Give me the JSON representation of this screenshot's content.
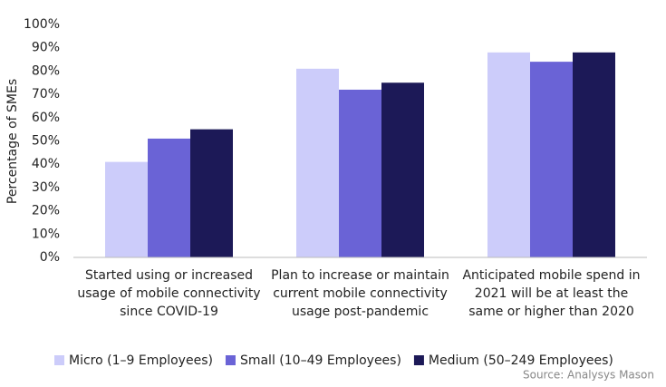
{
  "chart_data": {
    "type": "bar",
    "y_label": "Percentage of SMEs",
    "categories": [
      "Started using or increased usage of mobile connectivity since COVID-19",
      "Plan to increase or maintain current mobile connectivity usage post-pandemic",
      "Anticipated mobile spend in 2021 will be at least the same or higher than 2020"
    ],
    "series": [
      {
        "name": "Micro (1–9 Employees)",
        "color": "#ccccfa",
        "values": [
          41,
          81,
          88
        ]
      },
      {
        "name": "Small (10–49 Employees)",
        "color": "#6a63d6",
        "values": [
          51,
          72,
          84
        ]
      },
      {
        "name": "Medium (50–249 Employees)",
        "color": "#1c1957",
        "values": [
          55,
          75,
          88
        ]
      }
    ],
    "ylim": [
      0,
      100
    ],
    "yticks": [
      {
        "value": 0,
        "label": "0%"
      },
      {
        "value": 10,
        "label": "10%"
      },
      {
        "value": 20,
        "label": "20%"
      },
      {
        "value": 30,
        "label": "30%"
      },
      {
        "value": 40,
        "label": "40%"
      },
      {
        "value": 50,
        "label": "50%"
      },
      {
        "value": 60,
        "label": "60%"
      },
      {
        "value": 70,
        "label": "70%"
      },
      {
        "value": 80,
        "label": "80%"
      },
      {
        "value": 90,
        "label": "90%"
      },
      {
        "value": 100,
        "label": "100%"
      }
    ],
    "grid": false,
    "legend_position": "bottom",
    "source": "Source: Analysys Mason"
  }
}
